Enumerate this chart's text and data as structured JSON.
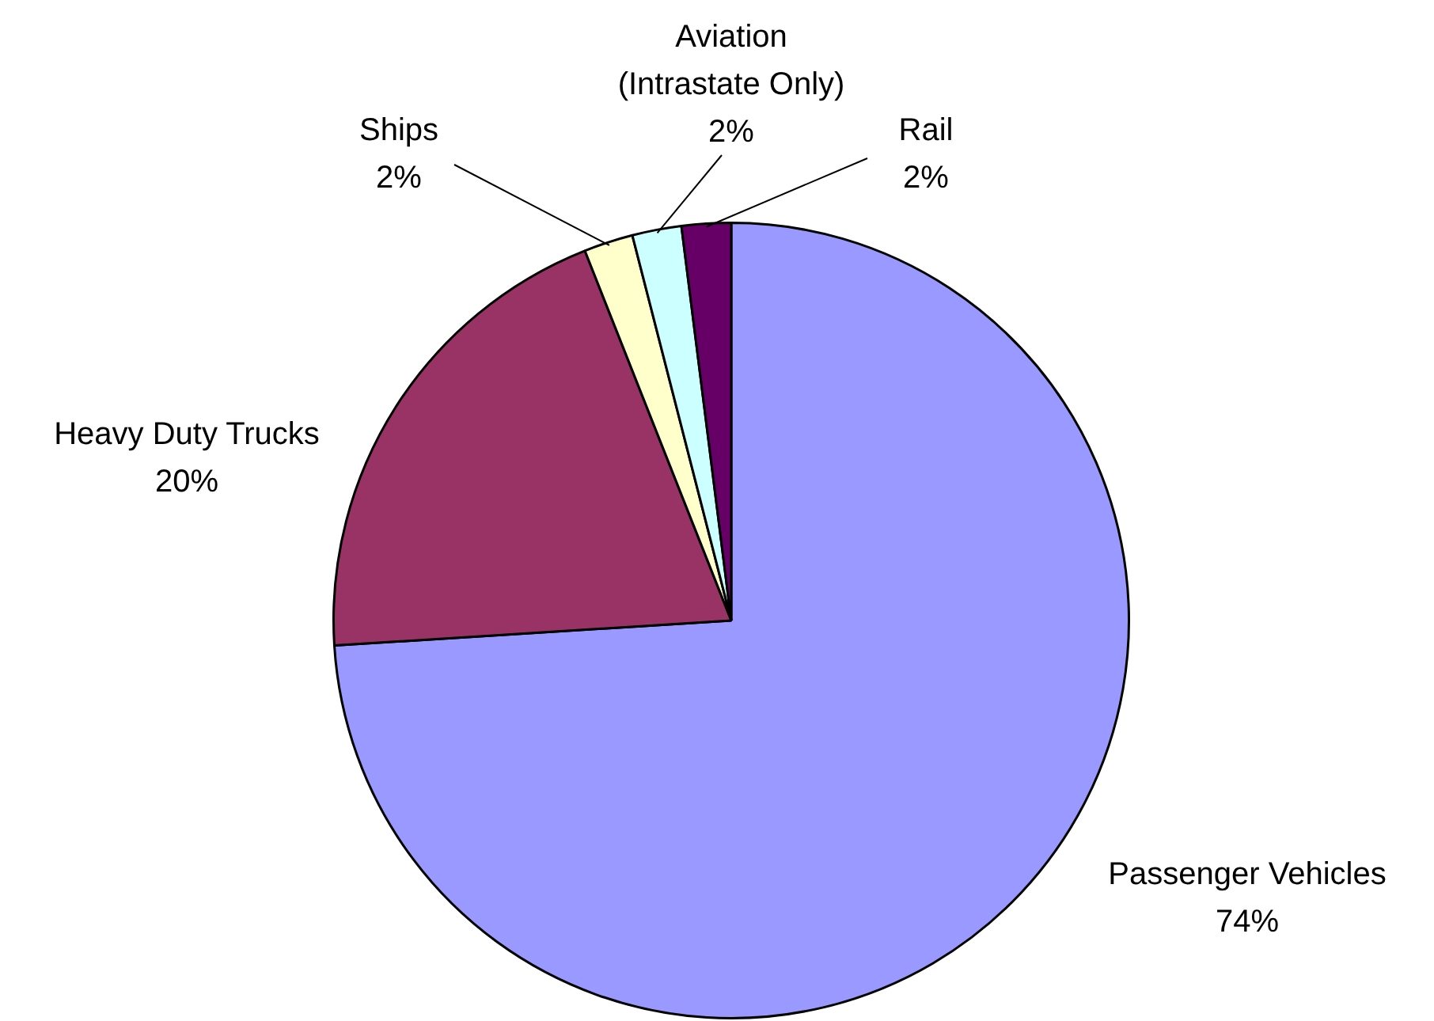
{
  "chart_data": {
    "type": "pie",
    "categories": [
      "Passenger Vehicles",
      "Heavy Duty Trucks",
      "Ships",
      "Aviation (Intrastate Only)",
      "Rail"
    ],
    "values": [
      74,
      20,
      2,
      2,
      2
    ],
    "colors": [
      "#9999ff",
      "#993366",
      "#ffffcc",
      "#ccffff",
      "#660066"
    ],
    "value_labels": [
      "74%",
      "20%",
      "2%",
      "2%",
      "2%"
    ],
    "legend": false
  }
}
